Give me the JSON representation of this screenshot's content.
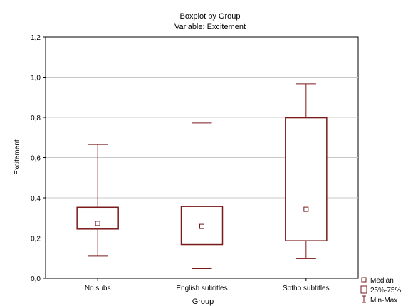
{
  "chart_data": {
    "type": "boxplot",
    "title": "Boxplot by Group",
    "subtitle": "Variable: Excitement",
    "xlabel": "Group",
    "ylabel": "Excitement",
    "ylim": [
      0.0,
      1.2
    ],
    "yticks": [
      "0,0",
      "0,2",
      "0,4",
      "0,6",
      "0,8",
      "1,0",
      "1,2"
    ],
    "ytick_values": [
      0.0,
      0.2,
      0.4,
      0.6,
      0.8,
      1.0,
      1.2
    ],
    "grid": true,
    "legend_position": "bottom-right",
    "color": "#7a1a1a",
    "categories": [
      "No subs",
      "English subtitles",
      "Sotho subtitles"
    ],
    "boxes": [
      {
        "category": "No subs",
        "min": 0.11,
        "q1": 0.245,
        "median": 0.273,
        "q3": 0.353,
        "max": 0.665
      },
      {
        "category": "English subtitles",
        "min": 0.048,
        "q1": 0.168,
        "median": 0.258,
        "q3": 0.357,
        "max": 0.772
      },
      {
        "category": "Sotho subtitles",
        "min": 0.098,
        "q1": 0.187,
        "median": 0.343,
        "q3": 0.798,
        "max": 0.967
      }
    ],
    "legend": {
      "median": "Median",
      "box": "25%-75%",
      "whisker": "Min-Max"
    }
  }
}
